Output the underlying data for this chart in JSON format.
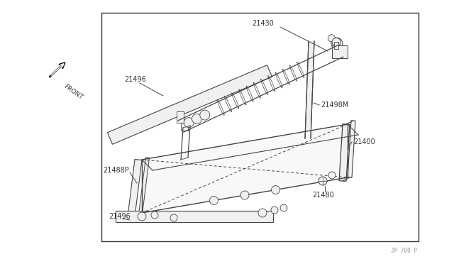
{
  "bg_color": "#ffffff",
  "border_color": "#333333",
  "line_color": "#444444",
  "fill_color": "#f0f0f0",
  "text_color": "#333333",
  "part_number_bottom_right": "JP /00 P",
  "border": [
    0.22,
    0.055,
    0.66,
    0.93
  ],
  "font_size": 7.0,
  "font_size_small": 5.5
}
